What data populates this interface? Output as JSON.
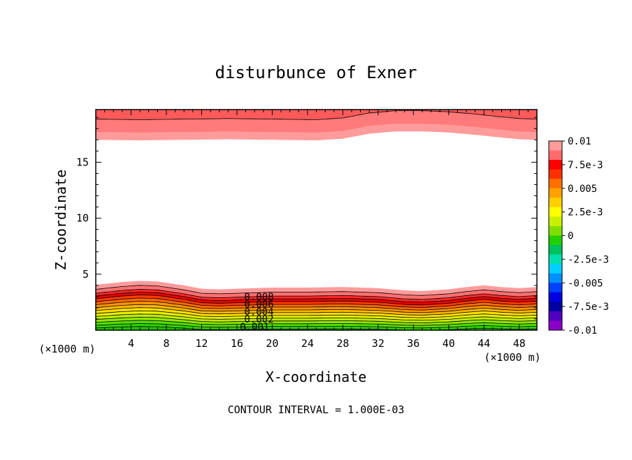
{
  "chart_data": {
    "type": "contour",
    "title": "disturbunce of Exner",
    "xlabel": "X-coordinate",
    "ylabel": "Z-coordinate",
    "x_unit_left": "(×1000 m)",
    "x_unit_right": "(×1000 m)",
    "footer": "CONTOUR INTERVAL = 1.000E-03",
    "xlim": [
      0,
      50
    ],
    "ylim": [
      0,
      19.7
    ],
    "x_ticks": [
      4,
      8,
      12,
      16,
      20,
      24,
      28,
      32,
      36,
      40,
      44,
      48
    ],
    "x_tick_labels": [
      "4",
      "8",
      "12",
      "16",
      "20",
      "24",
      "28",
      "32",
      "36",
      "40",
      "44",
      "48"
    ],
    "y_ticks": [
      5,
      10,
      15
    ],
    "y_tick_labels": [
      "5",
      "10",
      "15"
    ],
    "contour_labels": [
      {
        "text": "0.008",
        "x": 18.5,
        "z": 3.0
      },
      {
        "text": "0.006",
        "x": 18.5,
        "z": 2.35
      },
      {
        "text": "0.004",
        "x": 18.5,
        "z": 1.65
      },
      {
        "text": "0.002",
        "x": 18.5,
        "z": 1.0
      },
      {
        "text": "0.001",
        "x": 18.0,
        "z": 0.3
      }
    ],
    "bottom_profile": {
      "x": [
        0,
        3,
        5,
        7,
        10,
        12,
        14,
        16,
        18,
        20,
        24,
        28,
        32,
        35,
        37,
        40,
        42,
        44,
        46,
        48,
        50
      ],
      "offset": [
        0.2,
        0.45,
        0.55,
        0.5,
        0.15,
        -0.15,
        -0.2,
        -0.15,
        -0.1,
        -0.05,
        -0.05,
        0.0,
        -0.1,
        -0.3,
        -0.35,
        -0.2,
        0.0,
        0.15,
        0.0,
        -0.1,
        0.0
      ]
    },
    "top_profile": {
      "x": [
        0,
        5,
        10,
        15,
        20,
        25,
        28,
        31,
        34,
        37,
        40,
        43,
        46,
        48,
        50
      ],
      "offset": [
        0.0,
        -0.05,
        0.0,
        0.05,
        0.0,
        -0.05,
        0.1,
        0.55,
        0.75,
        0.75,
        0.65,
        0.45,
        0.2,
        0.05,
        0.0
      ]
    },
    "bottom_bands": [
      {
        "level": 0.0105,
        "z": 3.85,
        "color": "#ff9b9b"
      },
      {
        "level": 0.0095,
        "z": 3.45,
        "color": "#ff7070"
      },
      {
        "level": 0.0088,
        "z": 3.1,
        "color": "#ff2a2a"
      },
      {
        "level": 0.0082,
        "z": 2.85,
        "color": "#e80000"
      },
      {
        "level": 0.0075,
        "z": 2.6,
        "color": "#ff3a00"
      },
      {
        "level": 0.0068,
        "z": 2.35,
        "color": "#ff6a00"
      },
      {
        "level": 0.006,
        "z": 2.1,
        "color": "#ff9500"
      },
      {
        "level": 0.0052,
        "z": 1.85,
        "color": "#ffb800"
      },
      {
        "level": 0.0044,
        "z": 1.6,
        "color": "#ffe000"
      },
      {
        "level": 0.0036,
        "z": 1.35,
        "color": "#e8f000"
      },
      {
        "level": 0.0028,
        "z": 1.1,
        "color": "#c0ec00"
      },
      {
        "level": 0.002,
        "z": 0.85,
        "color": "#8ee600"
      },
      {
        "level": 0.0012,
        "z": 0.6,
        "color": "#55df00"
      },
      {
        "level": 0.0005,
        "z": 0.35,
        "color": "#2fd400"
      },
      {
        "level": 0.0,
        "z": 0.12,
        "color": "#1fc200"
      }
    ],
    "top_bands": [
      {
        "level": 0.0096,
        "z": 17.0,
        "color": "#ff9b9b"
      },
      {
        "level": 0.01,
        "z": 17.7,
        "color": "#ff7a7a"
      },
      {
        "level": 0.0105,
        "z": 18.85,
        "color": "#ff5a5a"
      }
    ],
    "colorbar": {
      "labels": [
        "0.01",
        "7.5e-3",
        "0.005",
        "2.5e-3",
        "0",
        "-2.5e-3",
        "-0.005",
        "-7.5e-3",
        "-0.01"
      ],
      "colors": [
        "#ff9b9b",
        "#ff6b6b",
        "#ff0000",
        "#ff3000",
        "#ff7000",
        "#ffa200",
        "#ffd000",
        "#ffff00",
        "#c8f000",
        "#7fe000",
        "#20d000",
        "#00c060",
        "#00e0b0",
        "#00d0ff",
        "#0090ff",
        "#0040ff",
        "#0000e0",
        "#0000a0",
        "#5000c0",
        "#8a00c8"
      ]
    }
  }
}
